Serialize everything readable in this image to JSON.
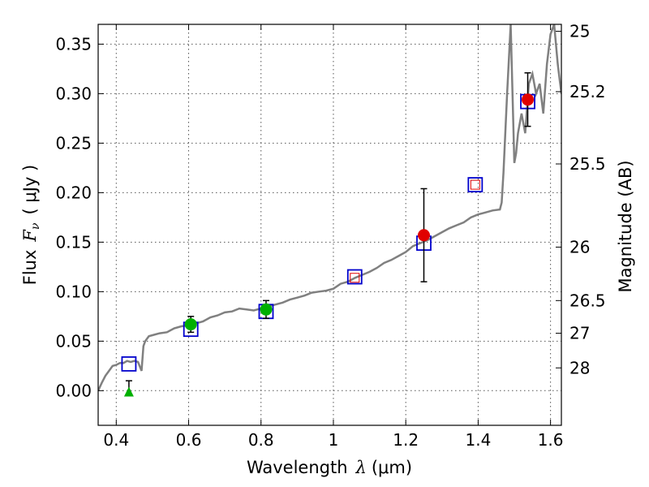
{
  "chart_data": {
    "type": "scatter",
    "title": "",
    "xlabel": "Wavelength",
    "xlabel_symbol": "λ",
    "xlabel_unit": "(μm)",
    "ylabel": "Flux",
    "ylabel_symbol": "F",
    "ylabel_subscript": "ν",
    "ylabel_unit": "( μJy )",
    "y2label": "Magnitude (AB)",
    "xlim": [
      0.35,
      1.63
    ],
    "ylim": [
      -0.035,
      0.37
    ],
    "grid": true,
    "xticks": [
      0.4,
      0.6,
      0.8,
      1.0,
      1.2,
      1.4,
      1.6
    ],
    "xtick_labels": [
      "0.4",
      "0.6",
      "0.8",
      "1",
      "1.2",
      "1.4",
      "1.6"
    ],
    "yticks": [
      0.0,
      0.05,
      0.1,
      0.15,
      0.2,
      0.25,
      0.3,
      0.35
    ],
    "ytick_labels": [
      "0.00",
      "0.05",
      "0.10",
      "0.15",
      "0.20",
      "0.25",
      "0.30",
      "0.35"
    ],
    "y2ticks": [
      {
        "label": "25",
        "flux": 0.363
      },
      {
        "label": "25.2",
        "flux": 0.302
      },
      {
        "label": "25.5",
        "flux": 0.229
      },
      {
        "label": "26",
        "flux": 0.145
      },
      {
        "label": "26.5",
        "flux": 0.091
      },
      {
        "label": "27",
        "flux": 0.058
      },
      {
        "label": "28",
        "flux": 0.023
      }
    ],
    "model_sed": {
      "name": "model spectrum",
      "color": "#808080",
      "x": [
        0.35,
        0.36,
        0.37,
        0.38,
        0.39,
        0.4,
        0.41,
        0.42,
        0.43,
        0.44,
        0.45,
        0.46,
        0.47,
        0.475,
        0.48,
        0.49,
        0.5,
        0.52,
        0.54,
        0.56,
        0.58,
        0.6,
        0.62,
        0.64,
        0.66,
        0.68,
        0.7,
        0.72,
        0.74,
        0.76,
        0.78,
        0.8,
        0.82,
        0.84,
        0.86,
        0.88,
        0.9,
        0.92,
        0.94,
        0.96,
        0.98,
        1.0,
        1.02,
        1.04,
        1.06,
        1.08,
        1.1,
        1.12,
        1.14,
        1.16,
        1.18,
        1.2,
        1.22,
        1.24,
        1.26,
        1.28,
        1.3,
        1.32,
        1.34,
        1.36,
        1.38,
        1.4,
        1.42,
        1.44,
        1.46,
        1.465,
        1.47,
        1.48,
        1.49,
        1.5,
        1.505,
        1.51,
        1.52,
        1.53,
        1.54,
        1.55,
        1.56,
        1.57,
        1.58,
        1.59,
        1.6,
        1.61,
        1.62,
        1.63
      ],
      "y": [
        0.0,
        0.008,
        0.015,
        0.02,
        0.025,
        0.026,
        0.028,
        0.028,
        0.03,
        0.029,
        0.03,
        0.029,
        0.02,
        0.045,
        0.05,
        0.055,
        0.056,
        0.058,
        0.059,
        0.063,
        0.065,
        0.066,
        0.068,
        0.07,
        0.074,
        0.076,
        0.079,
        0.08,
        0.083,
        0.082,
        0.081,
        0.083,
        0.085,
        0.087,
        0.089,
        0.092,
        0.094,
        0.096,
        0.099,
        0.1,
        0.101,
        0.103,
        0.108,
        0.11,
        0.114,
        0.117,
        0.12,
        0.124,
        0.129,
        0.132,
        0.136,
        0.14,
        0.146,
        0.149,
        0.152,
        0.156,
        0.16,
        0.164,
        0.167,
        0.17,
        0.175,
        0.178,
        0.18,
        0.182,
        0.183,
        0.19,
        0.22,
        0.3,
        0.37,
        0.23,
        0.24,
        0.26,
        0.28,
        0.26,
        0.31,
        0.32,
        0.3,
        0.31,
        0.28,
        0.33,
        0.36,
        0.37,
        0.33,
        0.3
      ]
    },
    "series": [
      {
        "name": "model-band-flux",
        "marker": "open-square",
        "color": "#0000cc",
        "x": [
          0.435,
          0.606,
          0.814,
          1.059,
          1.25,
          1.392,
          1.537
        ],
        "y": [
          0.027,
          0.062,
          0.08,
          0.115,
          0.149,
          0.208,
          0.292
        ]
      },
      {
        "name": "observed-red",
        "marker": "circle",
        "color": "#e00000",
        "x": [
          1.25,
          1.537
        ],
        "y": [
          0.157,
          0.294
        ],
        "yerr": [
          0.047,
          0.027
        ]
      },
      {
        "name": "observed-green",
        "marker": "circle",
        "color": "#00b000",
        "x": [
          0.606,
          0.814
        ],
        "y": [
          0.067,
          0.082
        ],
        "yerr": [
          0.008,
          0.009
        ]
      },
      {
        "name": "upper-limit",
        "marker": "triangle",
        "color": "#00b000",
        "x": [
          0.435
        ],
        "y": [
          -0.001
        ],
        "yerr_up": [
          0.011
        ]
      },
      {
        "name": "observed-open-red",
        "marker": "open-square-small",
        "color": "#e00000",
        "x": [
          1.059,
          1.392
        ],
        "y": [
          0.114,
          0.208
        ]
      }
    ]
  }
}
